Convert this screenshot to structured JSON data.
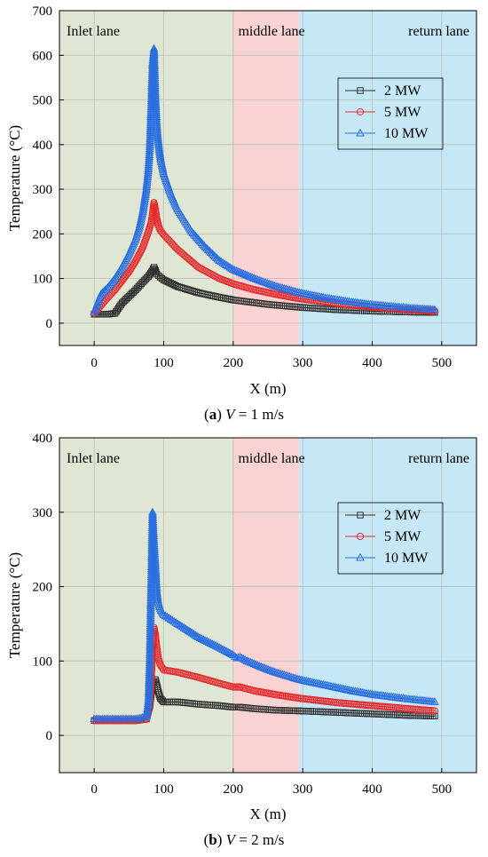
{
  "chart_data": [
    {
      "type": "line",
      "caption": {
        "letter": "a",
        "var": "V",
        "rest": "= 1 m/s"
      },
      "xlabel": "X (m)",
      "ylabel": "Temperature (°C)",
      "xlim": [
        -50,
        550
      ],
      "ylim": [
        -50,
        700
      ],
      "xticks": [
        0,
        100,
        200,
        300,
        400,
        500
      ],
      "yticks": [
        0,
        100,
        200,
        300,
        400,
        500,
        600,
        700
      ],
      "grid": true,
      "legend_position": "upper-right",
      "regions": [
        {
          "label": "Inlet lane",
          "x_start": -50,
          "x_end": 200,
          "color": "#dfe7d4"
        },
        {
          "label": "middle lane",
          "x_start": 200,
          "x_end": 295,
          "color": "#f9d2d4"
        },
        {
          "label": "return lane",
          "x_start": 295,
          "x_end": 550,
          "color": "#c6e8f6"
        }
      ],
      "series": [
        {
          "name": "2 MW",
          "color": "#303030",
          "marker": "square",
          "points": [
            [
              0,
              20
            ],
            [
              10,
              20
            ],
            [
              20,
              20
            ],
            [
              30,
              22
            ],
            [
              40,
              45
            ],
            [
              50,
              60
            ],
            [
              60,
              75
            ],
            [
              70,
              92
            ],
            [
              78,
              105
            ],
            [
              84,
              118
            ],
            [
              86,
              125
            ],
            [
              88,
              118
            ],
            [
              90,
              110
            ],
            [
              95,
              103
            ],
            [
              100,
              97
            ],
            [
              120,
              82
            ],
            [
              150,
              68
            ],
            [
              180,
              58
            ],
            [
              200,
              52
            ],
            [
              250,
              42
            ],
            [
              300,
              35
            ],
            [
              350,
              30
            ],
            [
              400,
              27
            ],
            [
              450,
              25
            ],
            [
              490,
              24
            ]
          ]
        },
        {
          "name": "5 MW",
          "color": "#e8282a",
          "marker": "circle",
          "points": [
            [
              0,
              22
            ],
            [
              10,
              40
            ],
            [
              20,
              58
            ],
            [
              30,
              75
            ],
            [
              40,
              95
            ],
            [
              50,
              115
            ],
            [
              60,
              140
            ],
            [
              70,
              170
            ],
            [
              78,
              205
            ],
            [
              82,
              225
            ],
            [
              84,
              245
            ],
            [
              86,
              270
            ],
            [
              88,
              255
            ],
            [
              90,
              235
            ],
            [
              92,
              220
            ],
            [
              95,
              208
            ],
            [
              100,
              198
            ],
            [
              120,
              165
            ],
            [
              150,
              125
            ],
            [
              180,
              100
            ],
            [
              200,
              88
            ],
            [
              230,
              75
            ],
            [
              260,
              65
            ],
            [
              295,
              55
            ],
            [
              350,
              44
            ],
            [
              400,
              36
            ],
            [
              450,
              30
            ],
            [
              490,
              27
            ]
          ]
        },
        {
          "name": "10 MW",
          "color": "#2a6ee0",
          "marker": "triangle",
          "points": [
            [
              0,
              25
            ],
            [
              10,
              65
            ],
            [
              20,
              80
            ],
            [
              30,
              100
            ],
            [
              40,
              125
            ],
            [
              50,
              155
            ],
            [
              60,
              190
            ],
            [
              65,
              215
            ],
            [
              70,
              250
            ],
            [
              75,
              300
            ],
            [
              78,
              345
            ],
            [
              80,
              395
            ],
            [
              82,
              480
            ],
            [
              84,
              580
            ],
            [
              86,
              615
            ],
            [
              88,
              510
            ],
            [
              90,
              445
            ],
            [
              92,
              410
            ],
            [
              94,
              385
            ],
            [
              96,
              365
            ],
            [
              100,
              335
            ],
            [
              110,
              290
            ],
            [
              120,
              255
            ],
            [
              140,
              205
            ],
            [
              160,
              170
            ],
            [
              180,
              140
            ],
            [
              200,
              120
            ],
            [
              230,
              100
            ],
            [
              260,
              83
            ],
            [
              295,
              68
            ],
            [
              330,
              57
            ],
            [
              370,
              47
            ],
            [
              400,
              41
            ],
            [
              450,
              34
            ],
            [
              490,
              30
            ]
          ]
        }
      ]
    },
    {
      "type": "line",
      "caption": {
        "letter": "b",
        "var": "V",
        "rest": "= 2 m/s"
      },
      "xlabel": "X (m)",
      "ylabel": "Temperature (°C)",
      "xlim": [
        -50,
        550
      ],
      "ylim": [
        -50,
        400
      ],
      "xticks": [
        0,
        100,
        200,
        300,
        400,
        500
      ],
      "yticks": [
        0,
        100,
        200,
        300,
        400
      ],
      "grid": true,
      "legend_position": "upper-right",
      "regions": [
        {
          "label": "Inlet lane",
          "x_start": -50,
          "x_end": 200,
          "color": "#dfe7d4"
        },
        {
          "label": "middle lane",
          "x_start": 200,
          "x_end": 295,
          "color": "#f9d2d4"
        },
        {
          "label": "return lane",
          "x_start": 295,
          "x_end": 550,
          "color": "#c6e8f6"
        }
      ],
      "series": [
        {
          "name": "2 MW",
          "color": "#303030",
          "marker": "square",
          "points": [
            [
              0,
              20
            ],
            [
              20,
              20
            ],
            [
              40,
              20
            ],
            [
              60,
              20
            ],
            [
              75,
              22
            ],
            [
              80,
              40
            ],
            [
              84,
              70
            ],
            [
              88,
              75
            ],
            [
              90,
              68
            ],
            [
              92,
              60
            ],
            [
              95,
              50
            ],
            [
              100,
              45
            ],
            [
              120,
              45
            ],
            [
              150,
              42
            ],
            [
              180,
              40
            ],
            [
              200,
              38
            ],
            [
              210,
              38
            ],
            [
              230,
              36
            ],
            [
              260,
              34
            ],
            [
              295,
              33
            ],
            [
              350,
              31
            ],
            [
              400,
              29
            ],
            [
              450,
              27
            ],
            [
              490,
              26
            ]
          ]
        },
        {
          "name": "5 MW",
          "color": "#e8282a",
          "marker": "circle",
          "points": [
            [
              0,
              20
            ],
            [
              20,
              20
            ],
            [
              40,
              20
            ],
            [
              60,
              20
            ],
            [
              75,
              22
            ],
            [
              80,
              45
            ],
            [
              82,
              75
            ],
            [
              84,
              120
            ],
            [
              86,
              145
            ],
            [
              88,
              135
            ],
            [
              90,
              118
            ],
            [
              92,
              105
            ],
            [
              95,
              95
            ],
            [
              100,
              88
            ],
            [
              120,
              85
            ],
            [
              150,
              78
            ],
            [
              180,
              70
            ],
            [
              200,
              65
            ],
            [
              210,
              65
            ],
            [
              230,
              60
            ],
            [
              260,
              55
            ],
            [
              295,
              50
            ],
            [
              350,
              44
            ],
            [
              400,
              40
            ],
            [
              450,
              36
            ],
            [
              490,
              33
            ]
          ]
        },
        {
          "name": "10 MW",
          "color": "#2a6ee0",
          "marker": "triangle",
          "points": [
            [
              0,
              22
            ],
            [
              20,
              22
            ],
            [
              40,
              22
            ],
            [
              60,
              22
            ],
            [
              75,
              25
            ],
            [
              78,
              45
            ],
            [
              80,
              100
            ],
            [
              82,
              200
            ],
            [
              84,
              300
            ],
            [
              86,
              260
            ],
            [
              88,
              230
            ],
            [
              90,
              195
            ],
            [
              92,
              180
            ],
            [
              95,
              170
            ],
            [
              100,
              162
            ],
            [
              120,
              150
            ],
            [
              150,
              132
            ],
            [
              180,
              118
            ],
            [
              200,
              108
            ],
            [
              205,
              104
            ],
            [
              210,
              105
            ],
            [
              220,
              100
            ],
            [
              240,
              92
            ],
            [
              260,
              85
            ],
            [
              295,
              75
            ],
            [
              330,
              68
            ],
            [
              370,
              60
            ],
            [
              400,
              55
            ],
            [
              450,
              49
            ],
            [
              490,
              45
            ]
          ]
        }
      ]
    }
  ]
}
